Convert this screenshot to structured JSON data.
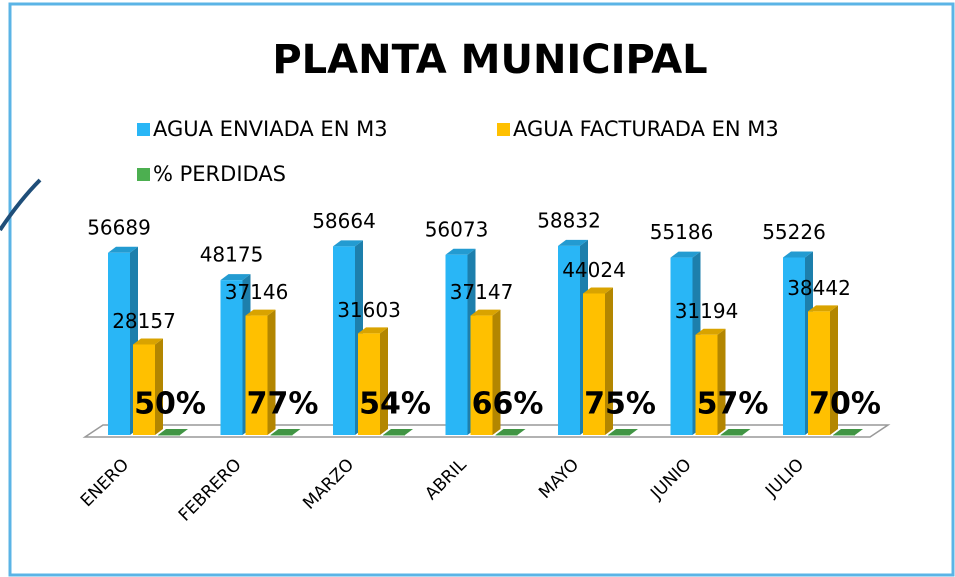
{
  "chart_data": {
    "type": "bar3d",
    "title": "PLANTA MUNICIPAL",
    "categories": [
      "ENERO",
      "FEBRERO",
      "MARZO",
      "ABRIL",
      "MAYO",
      "JUNIO",
      "JULIO"
    ],
    "series": [
      {
        "name": "AGUA ENVIADA EN M3",
        "color": "#29b6f6",
        "values": [
          56689,
          48175,
          58664,
          56073,
          58832,
          55186,
          55226
        ]
      },
      {
        "name": "AGUA FACTURADA EN M3",
        "color": "#ffc000",
        "values": [
          28157,
          37146,
          31603,
          37147,
          44024,
          31194,
          38442
        ]
      },
      {
        "name": "% PERDIDAS",
        "color": "#4caf50",
        "values": [
          0.5,
          0.77,
          0.54,
          0.66,
          0.75,
          0.57,
          0.7
        ],
        "value_labels": [
          "50%",
          "77%",
          "54%",
          "66%",
          "75%",
          "57%",
          "70%"
        ]
      }
    ],
    "ylim": [
      0,
      70000
    ]
  }
}
